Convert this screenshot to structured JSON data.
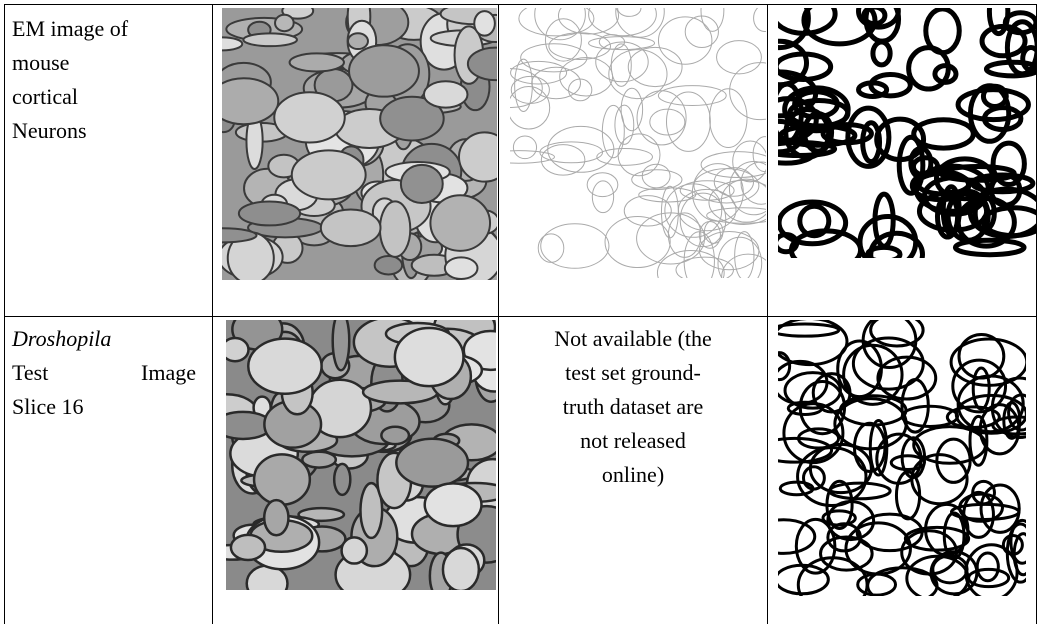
{
  "table": {
    "rows": [
      {
        "label": [
          "EM image of",
          "mouse",
          "cortical",
          "Neurons"
        ]
      },
      {
        "label": [
          "Droshopila",
          "Test Image",
          "Slice 16"
        ],
        "ground_truth": [
          "Not available (the",
          "test set ground-",
          "truth dataset are",
          "not released",
          "online)"
        ]
      }
    ]
  }
}
